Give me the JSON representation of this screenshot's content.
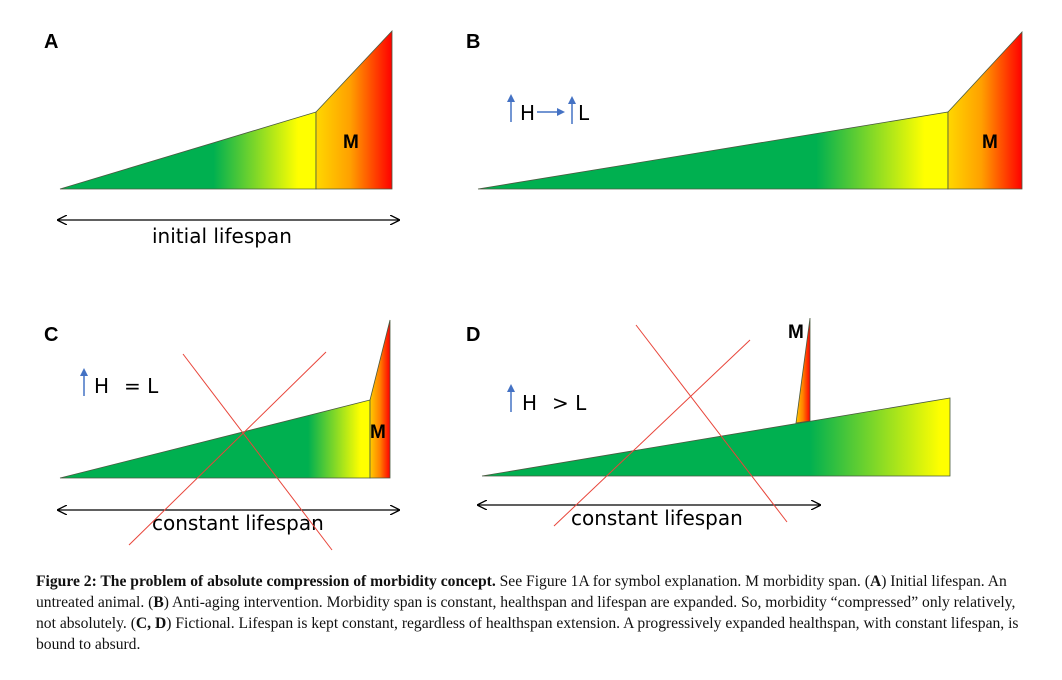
{
  "panels": {
    "A": {
      "letter": "A",
      "m_label": "M",
      "lifespan_label": "initial lifespan"
    },
    "B": {
      "letter": "B",
      "m_label": "M",
      "symbol_h": "H",
      "symbol_l": "L"
    },
    "C": {
      "letter": "C",
      "m_label": "M",
      "symbol_h": "H",
      "symbol_rel": "= L",
      "lifespan_label": "constant lifespan"
    },
    "D": {
      "letter": "D",
      "m_label": "M",
      "symbol_h": "H",
      "symbol_rel": "> L",
      "lifespan_label": "constant lifespan"
    }
  },
  "colors": {
    "green": "#00b050",
    "yellow": "#ffff00",
    "orange": "#ffa500",
    "red": "#ff0000",
    "cross": "#e8453a",
    "arrow": "#4472c4"
  },
  "caption": {
    "title": "Figure 2: The problem of absolute compression of morbidity concept.",
    "intro": " See Figure 1A for symbol explanation. M morbidity span. (",
    "a_ref": "A",
    "a_text": ") Initial lifespan. An untreated animal. (",
    "b_ref": "B",
    "b_text": ") Anti-aging intervention. Morbidity span is constant, healthspan and lifespan are expanded. So, morbidity “compressed” only relatively, not absolutely. (",
    "cd_ref": "C, D",
    "cd_text": ") Fictional. Lifespan is kept constant, regardless of healthspan extension. A progressively expanded healthspan, with constant lifespan, is bound to absurd."
  }
}
